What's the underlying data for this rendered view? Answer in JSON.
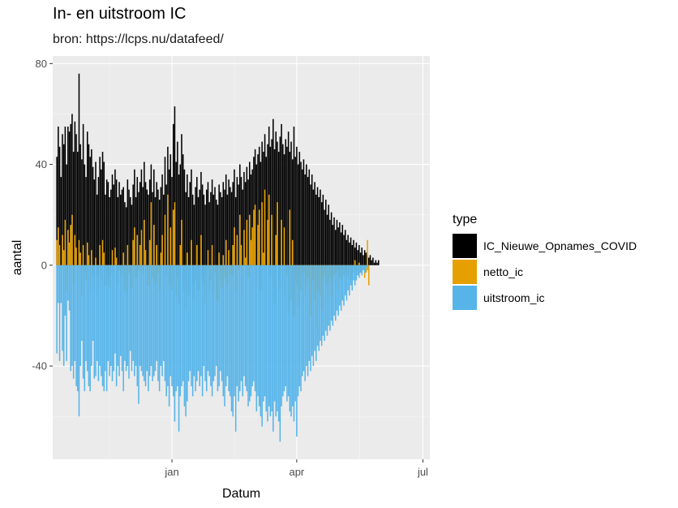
{
  "title": "In- en uitstroom IC",
  "subtitle": "bron: https://lcps.nu/datafeed/",
  "chart_data": {
    "type": "bar",
    "xlabel": "Datum",
    "ylabel": "aantal",
    "x_range": [
      "2020-10-07",
      "2021-07-06"
    ],
    "ylim": [
      -77,
      83
    ],
    "y_ticks": [
      80,
      40,
      0,
      -40
    ],
    "x_ticks": [
      {
        "label": "jan",
        "date": "2021-01-01"
      },
      {
        "label": "apr",
        "date": "2021-04-01"
      },
      {
        "label": "jul",
        "date": "2021-07-01"
      }
    ],
    "grid": true,
    "legend_title": "type",
    "legend_position": "right",
    "colors": {
      "IC_Nieuwe_Opnames_COVID": "#000000",
      "netto_ic": "#E69F00",
      "uitstroom_ic": "#56B4E9"
    },
    "series": [
      {
        "name": "IC_Nieuwe_Opnames_COVID",
        "note_start_date": "2020-10-10",
        "values": [
          43,
          55,
          47,
          35,
          52,
          48,
          55,
          40,
          55,
          53,
          56,
          60,
          45,
          57,
          52,
          45,
          76,
          48,
          42,
          56,
          40,
          35,
          53,
          48,
          43,
          46,
          39,
          34,
          41,
          28,
          35,
          43,
          38,
          45,
          41,
          28,
          34,
          33,
          27,
          30,
          36,
          32,
          38,
          34,
          27,
          33,
          28,
          30,
          31,
          25,
          23,
          34,
          30,
          27,
          24,
          32,
          38,
          27,
          35,
          29,
          33,
          38,
          31,
          41,
          33,
          30,
          28,
          34,
          40,
          29,
          38,
          27,
          33,
          30,
          26,
          31,
          36,
          28,
          43,
          32,
          47,
          38,
          44,
          35,
          56,
          63,
          41,
          49,
          36,
          40,
          52,
          44,
          38,
          29,
          36,
          27,
          33,
          38,
          28,
          24,
          31,
          35,
          27,
          30,
          37,
          32,
          28,
          24,
          30,
          33,
          25,
          29,
          34,
          28,
          31,
          26,
          24,
          32,
          29,
          27,
          33,
          30,
          36,
          28,
          34,
          31,
          29,
          33,
          38,
          27,
          35,
          32,
          40,
          35,
          30,
          37,
          33,
          39,
          34,
          41,
          36,
          38,
          43,
          46,
          40,
          44,
          47,
          41,
          49,
          45,
          52,
          43,
          48,
          55,
          47,
          50,
          58,
          46,
          53,
          49,
          45,
          51,
          56,
          48,
          44,
          50,
          47,
          53,
          45,
          49,
          42,
          55,
          43,
          47,
          40,
          45,
          41,
          38,
          42,
          36,
          40,
          35,
          38,
          32,
          36,
          30,
          33,
          28,
          31,
          27,
          30,
          25,
          28,
          22,
          26,
          20,
          24,
          18,
          21,
          16,
          19,
          14,
          18,
          15,
          17,
          13,
          16,
          12,
          14,
          10,
          12,
          9,
          11,
          8,
          10,
          7,
          9,
          6,
          8,
          5,
          7,
          4,
          6,
          5,
          4,
          3,
          4,
          2,
          3,
          1,
          2,
          1,
          2
        ]
      },
      {
        "name": "netto_ic",
        "note_start_date": "2020-10-10",
        "values": [
          10,
          15,
          8,
          -5,
          12,
          6,
          18,
          -10,
          14,
          9,
          16,
          20,
          -8,
          12,
          7,
          -15,
          10,
          5,
          -12,
          8,
          -3,
          -6,
          9,
          4,
          -10,
          6,
          -4,
          -8,
          3,
          -12,
          -5,
          8,
          -6,
          10,
          5,
          -8,
          -3,
          -6,
          -9,
          -4,
          6,
          -5,
          7,
          3,
          -8,
          -2,
          -6,
          -4,
          5,
          -10,
          -12,
          8,
          -3,
          -7,
          -9,
          10,
          15,
          -5,
          12,
          -2,
          8,
          14,
          -3,
          18,
          6,
          -4,
          -8,
          10,
          25,
          -5,
          16,
          -7,
          8,
          -3,
          -10,
          5,
          12,
          -6,
          20,
          -4,
          28,
          -8,
          15,
          -10,
          22,
          25,
          -12,
          -5,
          -15,
          8,
          18,
          -6,
          -10,
          -18,
          5,
          -12,
          -4,
          10,
          -8,
          -14,
          -6,
          8,
          -10,
          -3,
          12,
          -5,
          -8,
          -15,
          -4,
          6,
          -10,
          -6,
          8,
          -12,
          -3,
          -10,
          -14,
          5,
          -6,
          -9,
          4,
          -5,
          10,
          -8,
          6,
          -3,
          -4,
          8,
          15,
          -10,
          12,
          -2,
          20,
          8,
          -12,
          14,
          3,
          18,
          -5,
          20,
          10,
          15,
          22,
          24,
          -8,
          16,
          22,
          -10,
          25,
          5,
          30,
          -12,
          18,
          28,
          -5,
          20,
          -8,
          -15,
          12,
          25,
          -6,
          -10,
          18,
          -8,
          15,
          -12,
          -4,
          -18,
          22,
          -14,
          10,
          -20,
          -6,
          -8,
          -16,
          -4,
          -10,
          -14,
          -3,
          -12,
          -8,
          -5,
          -16,
          -20,
          -10,
          -6,
          -14,
          -25,
          -10,
          -8,
          -12,
          -18,
          -6,
          -4,
          -10,
          -8,
          -14,
          -5,
          -12,
          -6,
          -4,
          -8,
          -3,
          -10,
          -5,
          -6,
          -2,
          -4,
          -8,
          -3,
          -5,
          -2,
          -6,
          -1,
          -3,
          2,
          -2,
          -4,
          1,
          -3,
          -1,
          -2,
          -5,
          -3,
          10,
          -8
        ]
      },
      {
        "name": "uitstroom_ic",
        "note_start_date": "2020-10-10",
        "values": [
          -35,
          -15,
          -38,
          -15,
          -34,
          -40,
          -20,
          -38,
          -14,
          -18,
          -42,
          -40,
          -45,
          -38,
          -48,
          -50,
          -60,
          -40,
          -30,
          -45,
          -50,
          -38,
          -42,
          -48,
          -50,
          -40,
          -30,
          -45,
          -44,
          -38,
          -46,
          -40,
          -44,
          -48,
          -50,
          -42,
          -50,
          -38,
          -44,
          -40,
          -46,
          -42,
          -35,
          -48,
          -40,
          -44,
          -36,
          -42,
          -50,
          -38,
          -42,
          -40,
          -45,
          -34,
          -42,
          -38,
          -44,
          -40,
          -48,
          -55,
          -40,
          -42,
          -44,
          -46,
          -48,
          -42,
          -50,
          -44,
          -40,
          -46,
          -44,
          -42,
          -38,
          -46,
          -50,
          -40,
          -44,
          -38,
          -46,
          -52,
          -48,
          -56,
          -44,
          -48,
          -52,
          -62,
          -50,
          -48,
          -66,
          -52,
          -48,
          -46,
          -56,
          -60,
          -54,
          -46,
          -42,
          -48,
          -52,
          -44,
          -50,
          -46,
          -42,
          -48,
          -44,
          -52,
          -40,
          -46,
          -50,
          -42,
          -44,
          -48,
          -52,
          -46,
          -44,
          -40,
          -50,
          -48,
          -42,
          -46,
          -52,
          -56,
          -48,
          -44,
          -50,
          -52,
          -58,
          -60,
          -52,
          -66,
          -48,
          -54,
          -50,
          -46,
          -52,
          -44,
          -48,
          -50,
          -56,
          -54,
          -52,
          -48,
          -46,
          -50,
          -58,
          -52,
          -56,
          -60,
          -64,
          -54,
          -52,
          -58,
          -62,
          -56,
          -60,
          -58,
          -66,
          -54,
          -60,
          -58,
          -62,
          -70,
          -56,
          -52,
          -50,
          -48,
          -54,
          -52,
          -58,
          -60,
          -56,
          -62,
          -54,
          -68,
          -52,
          -48,
          -50,
          -44,
          -42,
          -46,
          -40,
          -44,
          -38,
          -42,
          -36,
          -40,
          -34,
          -38,
          -32,
          -34,
          -30,
          -32,
          -28,
          -30,
          -26,
          -28,
          -24,
          -26,
          -22,
          -24,
          -20,
          -22,
          -18,
          -20,
          -16,
          -18,
          -14,
          -16,
          -12,
          -14,
          -10,
          -12,
          -8,
          -10,
          -6,
          -8,
          -6,
          -4,
          -5,
          -3,
          -4,
          -2,
          -3,
          -1,
          -2
        ]
      }
    ]
  }
}
